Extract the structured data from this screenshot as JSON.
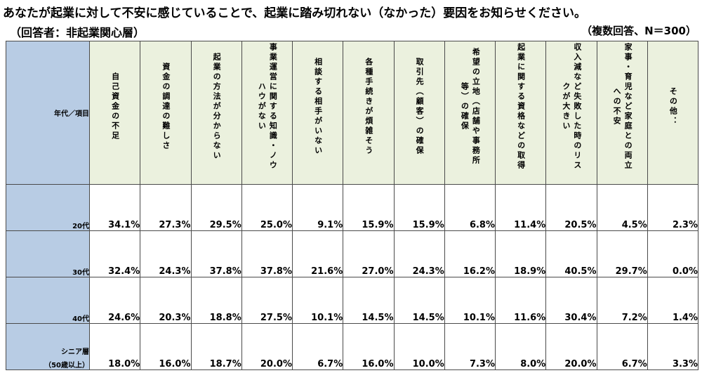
{
  "header": {
    "title": "あなたが起業に対して不安に感じていることで、起業に踏み切れない（なかった）要因をお知らせください。",
    "subtitle": "（回答者：非起業関心層）",
    "note": "（複数回答、N＝300）"
  },
  "chart_data": {
    "type": "table",
    "row_header_label": "年代／項目",
    "columns": [
      "自己資金の不足",
      "資金の調達の難しさ",
      "起業の方法が分からない",
      "事業運営に関する知識・ノウハウがない",
      "相談する相手がいない",
      "各種手続きが煩雑そう",
      "取引先（顧客）の確保",
      "希望の立地（店舗や事務所等）の確保",
      "起業に関する資格などの取得",
      "収入減など失敗した時のリスクが大きい",
      "家事・育児など家庭との両立への不安",
      "その他："
    ],
    "rows": [
      {
        "label": "20代",
        "label2": "",
        "values": [
          "34.1%",
          "27.3%",
          "29.5%",
          "25.0%",
          "9.1%",
          "15.9%",
          "15.9%",
          "6.8%",
          "11.4%",
          "20.5%",
          "4.5%",
          "2.3%"
        ]
      },
      {
        "label": "30代",
        "label2": "",
        "values": [
          "32.4%",
          "24.3%",
          "37.8%",
          "37.8%",
          "21.6%",
          "27.0%",
          "24.3%",
          "16.2%",
          "18.9%",
          "40.5%",
          "29.7%",
          "0.0%"
        ]
      },
      {
        "label": "40代",
        "label2": "",
        "values": [
          "24.6%",
          "20.3%",
          "18.8%",
          "27.5%",
          "10.1%",
          "14.5%",
          "14.5%",
          "10.1%",
          "11.6%",
          "30.4%",
          "7.2%",
          "1.4%"
        ]
      },
      {
        "label": "シニア層",
        "label2": "（50歳以上）",
        "values": [
          "18.0%",
          "16.0%",
          "18.7%",
          "20.0%",
          "6.7%",
          "16.0%",
          "10.0%",
          "7.3%",
          "8.0%",
          "20.0%",
          "6.7%",
          "3.3%"
        ]
      }
    ],
    "colors": {
      "header_fill": "#ebf1de",
      "row_header_fill": "#b8cce4",
      "border": "#4a4a4a"
    }
  }
}
